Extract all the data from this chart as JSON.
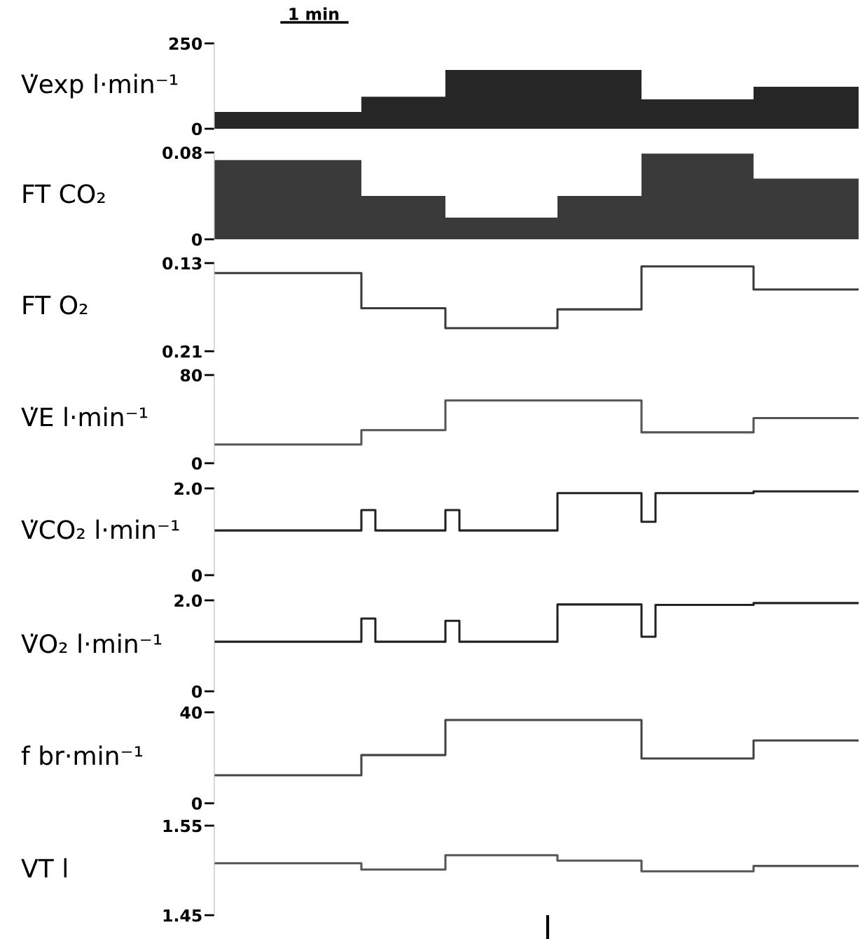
{
  "chart_data": [
    {
      "type": "area",
      "ylabel": "V̇exp l·min⁻¹",
      "annotations": [
        "1 min"
      ],
      "categories": [
        null,
        null,
        null,
        null,
        null,
        null,
        null,
        null,
        null,
        null,
        null,
        null,
        null,
        null,
        null,
        null,
        null,
        null,
        null,
        null,
        null,
        null,
        null,
        null,
        null,
        null,
        null,
        null,
        null,
        null,
        null,
        null,
        null,
        null,
        null,
        null,
        null,
        null,
        null,
        null,
        null,
        null,
        null,
        null,
        null,
        null,
        null
      ],
      "values": [
        49,
        49,
        49,
        49,
        49,
        49,
        49,
        49,
        49,
        49,
        49,
        94,
        94,
        94,
        94,
        94,
        94,
        172,
        172,
        172,
        172,
        172,
        172,
        172,
        172,
        172,
        172,
        172,
        172,
        172,
        172,
        86,
        86,
        86,
        86,
        86,
        86,
        86,
        86,
        123,
        123,
        123,
        123,
        123,
        123,
        123,
        123
      ],
      "color": "#262626",
      "ylim": [
        0,
        250
      ],
      "yticks": [
        0,
        250
      ],
      "tick_labels": "y"
    },
    {
      "type": "area",
      "ylabel": "FT CO₂",
      "categories": [
        null,
        null,
        null,
        null,
        null,
        null,
        null,
        null,
        null,
        null,
        null,
        null,
        null,
        null,
        null,
        null,
        null,
        null,
        null,
        null,
        null,
        null,
        null,
        null,
        null,
        null,
        null,
        null,
        null,
        null,
        null,
        null,
        null,
        null,
        null,
        null,
        null,
        null,
        null,
        null,
        null,
        null,
        null,
        null,
        null,
        null,
        null
      ],
      "values": [
        0.073,
        0.073,
        0.073,
        0.073,
        0.073,
        0.073,
        0.073,
        0.073,
        0.073,
        0.073,
        0.073,
        0.04,
        0.04,
        0.04,
        0.04,
        0.04,
        0.04,
        0.02,
        0.02,
        0.02,
        0.02,
        0.02,
        0.02,
        0.02,
        0.02,
        0.04,
        0.04,
        0.04,
        0.04,
        0.04,
        0.04,
        0.079,
        0.079,
        0.079,
        0.079,
        0.079,
        0.079,
        0.079,
        0.079,
        0.056,
        0.056,
        0.056,
        0.056,
        0.056,
        0.056,
        0.056,
        0.056
      ],
      "color": "#3a3a3a",
      "ylim": [
        0,
        0.08
      ],
      "yticks": [
        0,
        0.08
      ],
      "tick_labels": "y"
    },
    {
      "type": "step",
      "ylabel": "FT O₂",
      "categories": [
        null,
        null,
        null,
        null,
        null,
        null,
        null,
        null,
        null,
        null,
        null,
        null,
        null,
        null,
        null,
        null,
        null,
        null,
        null,
        null,
        null,
        null,
        null,
        null,
        null,
        null,
        null,
        null,
        null,
        null,
        null,
        null,
        null,
        null,
        null,
        null,
        null,
        null,
        null,
        null,
        null,
        null,
        null,
        null,
        null,
        null,
        null
      ],
      "values": [
        0.139,
        0.139,
        0.139,
        0.139,
        0.139,
        0.139,
        0.139,
        0.139,
        0.139,
        0.139,
        0.139,
        0.171,
        0.171,
        0.171,
        0.171,
        0.171,
        0.171,
        0.189,
        0.189,
        0.189,
        0.189,
        0.189,
        0.189,
        0.189,
        0.189,
        0.172,
        0.172,
        0.172,
        0.172,
        0.172,
        0.172,
        0.133,
        0.133,
        0.133,
        0.133,
        0.133,
        0.133,
        0.133,
        0.133,
        0.154,
        0.154,
        0.154,
        0.154,
        0.154,
        0.154,
        0.154,
        0.154
      ],
      "color": "#3a3a3a",
      "ylim": [
        0.21,
        0.13
      ],
      "yticks": [
        0.13,
        0.21
      ],
      "tick_labels": "y"
    },
    {
      "type": "step",
      "ylabel": "V̇E l·min⁻¹",
      "categories": [
        null,
        null,
        null,
        null,
        null,
        null,
        null,
        null,
        null,
        null,
        null,
        null,
        null,
        null,
        null,
        null,
        null,
        null,
        null,
        null,
        null,
        null,
        null,
        null,
        null,
        null,
        null,
        null,
        null,
        null,
        null,
        null,
        null,
        null,
        null,
        null,
        null,
        null,
        null,
        null,
        null,
        null,
        null,
        null,
        null,
        null,
        null
      ],
      "values": [
        17,
        17,
        17,
        17,
        17,
        17,
        17,
        17,
        17,
        17,
        17,
        30,
        30,
        30,
        30,
        30,
        30,
        57,
        57,
        57,
        57,
        57,
        57,
        57,
        57,
        57,
        57,
        57,
        57,
        57,
        57,
        28,
        28,
        28,
        28,
        28,
        28,
        28,
        28,
        41,
        41,
        41,
        41,
        41,
        41,
        41,
        41
      ],
      "color": "#555555",
      "ylim": [
        0,
        80
      ],
      "yticks": [
        0,
        80
      ],
      "tick_labels": "y"
    },
    {
      "type": "step",
      "ylabel": "V̇CO₂ l·min⁻¹",
      "categories": [
        null,
        null,
        null,
        null,
        null,
        null,
        null,
        null,
        null,
        null,
        null,
        null,
        null,
        null,
        null,
        null,
        null,
        null,
        null,
        null,
        null,
        null,
        null,
        null,
        null,
        null,
        null,
        null,
        null,
        null,
        null,
        null,
        null,
        null,
        null,
        null,
        null,
        null,
        null,
        null,
        null,
        null,
        null,
        null,
        null,
        null,
        null
      ],
      "values": [
        1.03,
        1.03,
        1.03,
        1.03,
        1.03,
        1.03,
        1.03,
        1.03,
        1.03,
        1.03,
        1.03,
        1.5,
        1.03,
        1.03,
        1.03,
        1.03,
        1.03,
        1.5,
        1.03,
        1.03,
        1.03,
        1.03,
        1.03,
        1.03,
        1.03,
        1.89,
        1.89,
        1.89,
        1.89,
        1.89,
        1.89,
        1.23,
        1.89,
        1.89,
        1.89,
        1.89,
        1.89,
        1.89,
        1.89,
        1.93,
        1.93,
        1.93,
        1.93,
        1.93,
        1.93,
        1.93,
        1.93
      ],
      "color": "#222222",
      "ylim": [
        0,
        2.0
      ],
      "yticks": [
        0,
        {
          "value": 2.0,
          "label": "2.0"
        }
      ],
      "tick_labels": "y"
    },
    {
      "type": "step",
      "ylabel": "V̇O₂ l·min⁻¹",
      "categories": [
        null,
        null,
        null,
        null,
        null,
        null,
        null,
        null,
        null,
        null,
        null,
        null,
        null,
        null,
        null,
        null,
        null,
        null,
        null,
        null,
        null,
        null,
        null,
        null,
        null,
        null,
        null,
        null,
        null,
        null,
        null,
        null,
        null,
        null,
        null,
        null,
        null,
        null,
        null,
        null,
        null,
        null,
        null,
        null,
        null,
        null,
        null
      ],
      "values": [
        1.09,
        1.09,
        1.09,
        1.09,
        1.09,
        1.09,
        1.09,
        1.09,
        1.09,
        1.09,
        1.09,
        1.6,
        1.09,
        1.09,
        1.09,
        1.09,
        1.09,
        1.55,
        1.09,
        1.09,
        1.09,
        1.09,
        1.09,
        1.09,
        1.09,
        1.91,
        1.91,
        1.91,
        1.91,
        1.91,
        1.91,
        1.2,
        1.9,
        1.9,
        1.9,
        1.9,
        1.9,
        1.9,
        1.9,
        1.94,
        1.94,
        1.94,
        1.94,
        1.94,
        1.94,
        1.94,
        1.94
      ],
      "color": "#222222",
      "ylim": [
        0,
        2.0
      ],
      "yticks": [
        0,
        {
          "value": 2.0,
          "label": "2.0"
        }
      ],
      "tick_labels": "y"
    },
    {
      "type": "step",
      "ylabel": "f br·min⁻¹",
      "categories": [
        null,
        null,
        null,
        null,
        null,
        null,
        null,
        null,
        null,
        null,
        null,
        null,
        null,
        null,
        null,
        null,
        null,
        null,
        null,
        null,
        null,
        null,
        null,
        null,
        null,
        null,
        null,
        null,
        null,
        null,
        null,
        null,
        null,
        null,
        null,
        null,
        null,
        null,
        null,
        null,
        null,
        null,
        null,
        null,
        null,
        null,
        null
      ],
      "values": [
        12.3,
        12.3,
        12.3,
        12.3,
        12.3,
        12.3,
        12.3,
        12.3,
        12.3,
        12.3,
        12.3,
        21.2,
        21.2,
        21.2,
        21.2,
        21.2,
        21.2,
        36.6,
        36.6,
        36.6,
        36.6,
        36.6,
        36.6,
        36.6,
        36.6,
        36.6,
        36.6,
        36.6,
        36.6,
        36.6,
        36.6,
        19.7,
        19.7,
        19.7,
        19.7,
        19.7,
        19.7,
        19.7,
        19.7,
        27.6,
        27.6,
        27.6,
        27.6,
        27.6,
        27.6,
        27.6,
        27.6
      ],
      "color": "#444444",
      "ylim": [
        0,
        40
      ],
      "yticks": [
        0,
        40
      ],
      "tick_labels": "y"
    },
    {
      "type": "step",
      "ylabel": "VT l",
      "categories": [
        null,
        null,
        null,
        null,
        null,
        null,
        null,
        null,
        null,
        null,
        null,
        null,
        null,
        null,
        null,
        null,
        null,
        null,
        null,
        null,
        null,
        null,
        null,
        null,
        null,
        null,
        null,
        null,
        null,
        null,
        null,
        null,
        null,
        null,
        null,
        null,
        null,
        null,
        null,
        null,
        null,
        null,
        null,
        null,
        null,
        null,
        null
      ],
      "values": [
        1.508,
        1.508,
        1.508,
        1.508,
        1.508,
        1.508,
        1.508,
        1.508,
        1.508,
        1.508,
        1.508,
        1.501,
        1.501,
        1.501,
        1.501,
        1.501,
        1.501,
        1.517,
        1.517,
        1.517,
        1.517,
        1.517,
        1.517,
        1.517,
        1.517,
        1.511,
        1.511,
        1.511,
        1.511,
        1.511,
        1.511,
        1.499,
        1.499,
        1.499,
        1.499,
        1.499,
        1.499,
        1.499,
        1.499,
        1.505,
        1.505,
        1.505,
        1.505,
        1.505,
        1.505,
        1.505,
        1.505
      ],
      "color": "#555555",
      "ylim": [
        1.45,
        1.55
      ],
      "yticks": [
        1.45,
        1.55
      ],
      "tick_labels": "y"
    }
  ]
}
